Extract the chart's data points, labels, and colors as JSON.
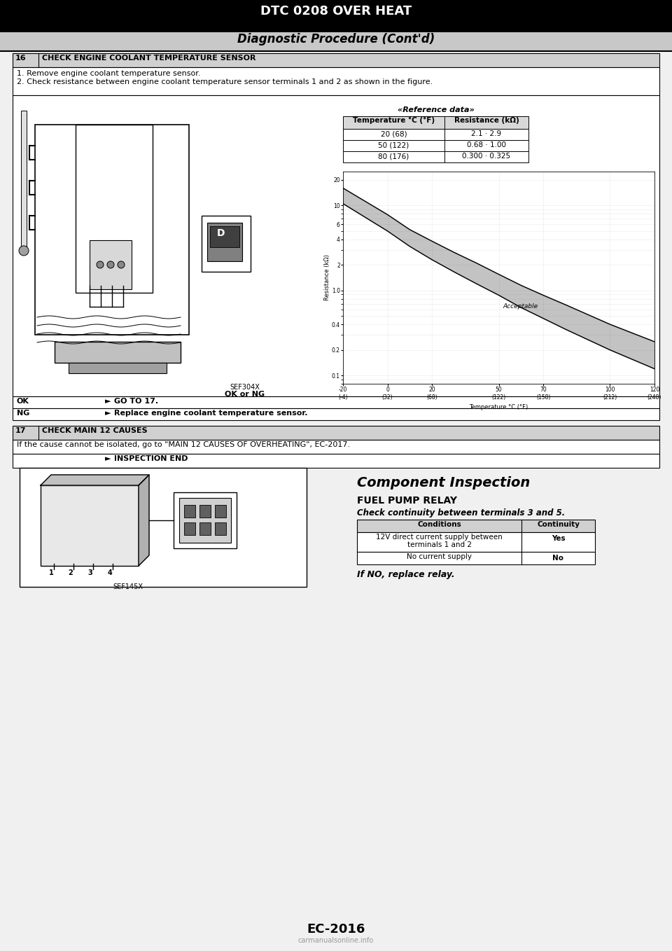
{
  "title_top": "DTC 0208 OVER HEAT",
  "subtitle": "Diagnostic Procedure (Cont'd)",
  "bg_color": "#f0f0f0",
  "page_bg": "#ffffff",
  "text_color": "#000000",
  "section16_label": "16",
  "section16_title": "CHECK ENGINE COOLANT TEMPERATURE SENSOR",
  "step1": "1. Remove engine coolant temperature sensor.",
  "step2": "2. Check resistance between engine coolant temperature sensor terminals 1 and 2 as shown in the figure.",
  "ref_title": "«Reference data»",
  "table_headers": [
    "Temperature °C (°F)",
    "Resistance (kΩ)"
  ],
  "table_rows": [
    [
      "20 (68)",
      "2.1 · 2.9"
    ],
    [
      "50 (122)",
      "0.68 · 1.00"
    ],
    [
      "80 (176)",
      "0.300 · 0.325"
    ]
  ],
  "graph_xlabel": "Temperature °C (°F)",
  "graph_ylabel": "Resistance (kΩ)",
  "graph_xtick_vals": [
    -20,
    0,
    20,
    50,
    70,
    100,
    120
  ],
  "graph_xtick_labels": [
    "-20\n(-4)",
    "0\n(32)",
    "20\n(68)",
    "50\n(122)",
    "70\n(158)",
    "100\n(212)",
    "120\n(248)"
  ],
  "graph_ytick_vals": [
    20,
    10,
    6,
    4,
    2,
    1.0,
    0.4,
    0.2,
    0.1
  ],
  "graph_ytick_labels": [
    "20",
    "10",
    "6",
    "4",
    "2",
    "1.0",
    "0.4",
    "0.2",
    "0.1"
  ],
  "upper_band_x": [
    -20,
    0,
    10,
    20,
    30,
    40,
    50,
    60,
    70,
    80,
    100,
    120
  ],
  "upper_band_y": [
    16.0,
    7.8,
    5.2,
    3.8,
    2.8,
    2.1,
    1.55,
    1.15,
    0.88,
    0.68,
    0.4,
    0.25
  ],
  "lower_band_x": [
    -20,
    0,
    10,
    20,
    30,
    40,
    50,
    60,
    70,
    80,
    100,
    120
  ],
  "lower_band_y": [
    10.5,
    5.0,
    3.3,
    2.3,
    1.65,
    1.2,
    0.88,
    0.63,
    0.47,
    0.35,
    0.2,
    0.12
  ],
  "acceptable_label": "Acceptable",
  "ok_text": "OK",
  "ok_arrow": "►",
  "ok_result": "GO TO 17.",
  "ng_text": "NG",
  "ng_arrow": "►",
  "ng_result": "Replace engine coolant temperature sensor.",
  "sef_code": "SEF304X",
  "ok_or_ng": "OK or NG",
  "section17_label": "17",
  "section17_title": "CHECK MAIN 12 CAUSES",
  "section17_text": "If the cause cannot be isolated, go to \"MAIN 12 CAUSES OF OVERHEATING\", EC-2017.",
  "inspection_end": "INSPECTION END",
  "comp_insp_title": "Component Inspection",
  "fuel_pump_title": "FUEL PUMP RELAY",
  "fuel_pump_sub": "Check continuity between terminals 3 and 5.",
  "comp_table_headers": [
    "Conditions",
    "Continuity"
  ],
  "comp_table_row1_col1_line1": "12V direct current supply between",
  "comp_table_row1_col1_line2": "terminals 1 and 2",
  "comp_table_row1_col2": "Yes",
  "comp_table_row2_col1": "No current supply",
  "comp_table_row2_col2": "No",
  "if_no": "If NO, replace relay.",
  "sef145x": "SEF145X",
  "page_num": "EC-2016",
  "watermark": "carmanualsonline.info"
}
